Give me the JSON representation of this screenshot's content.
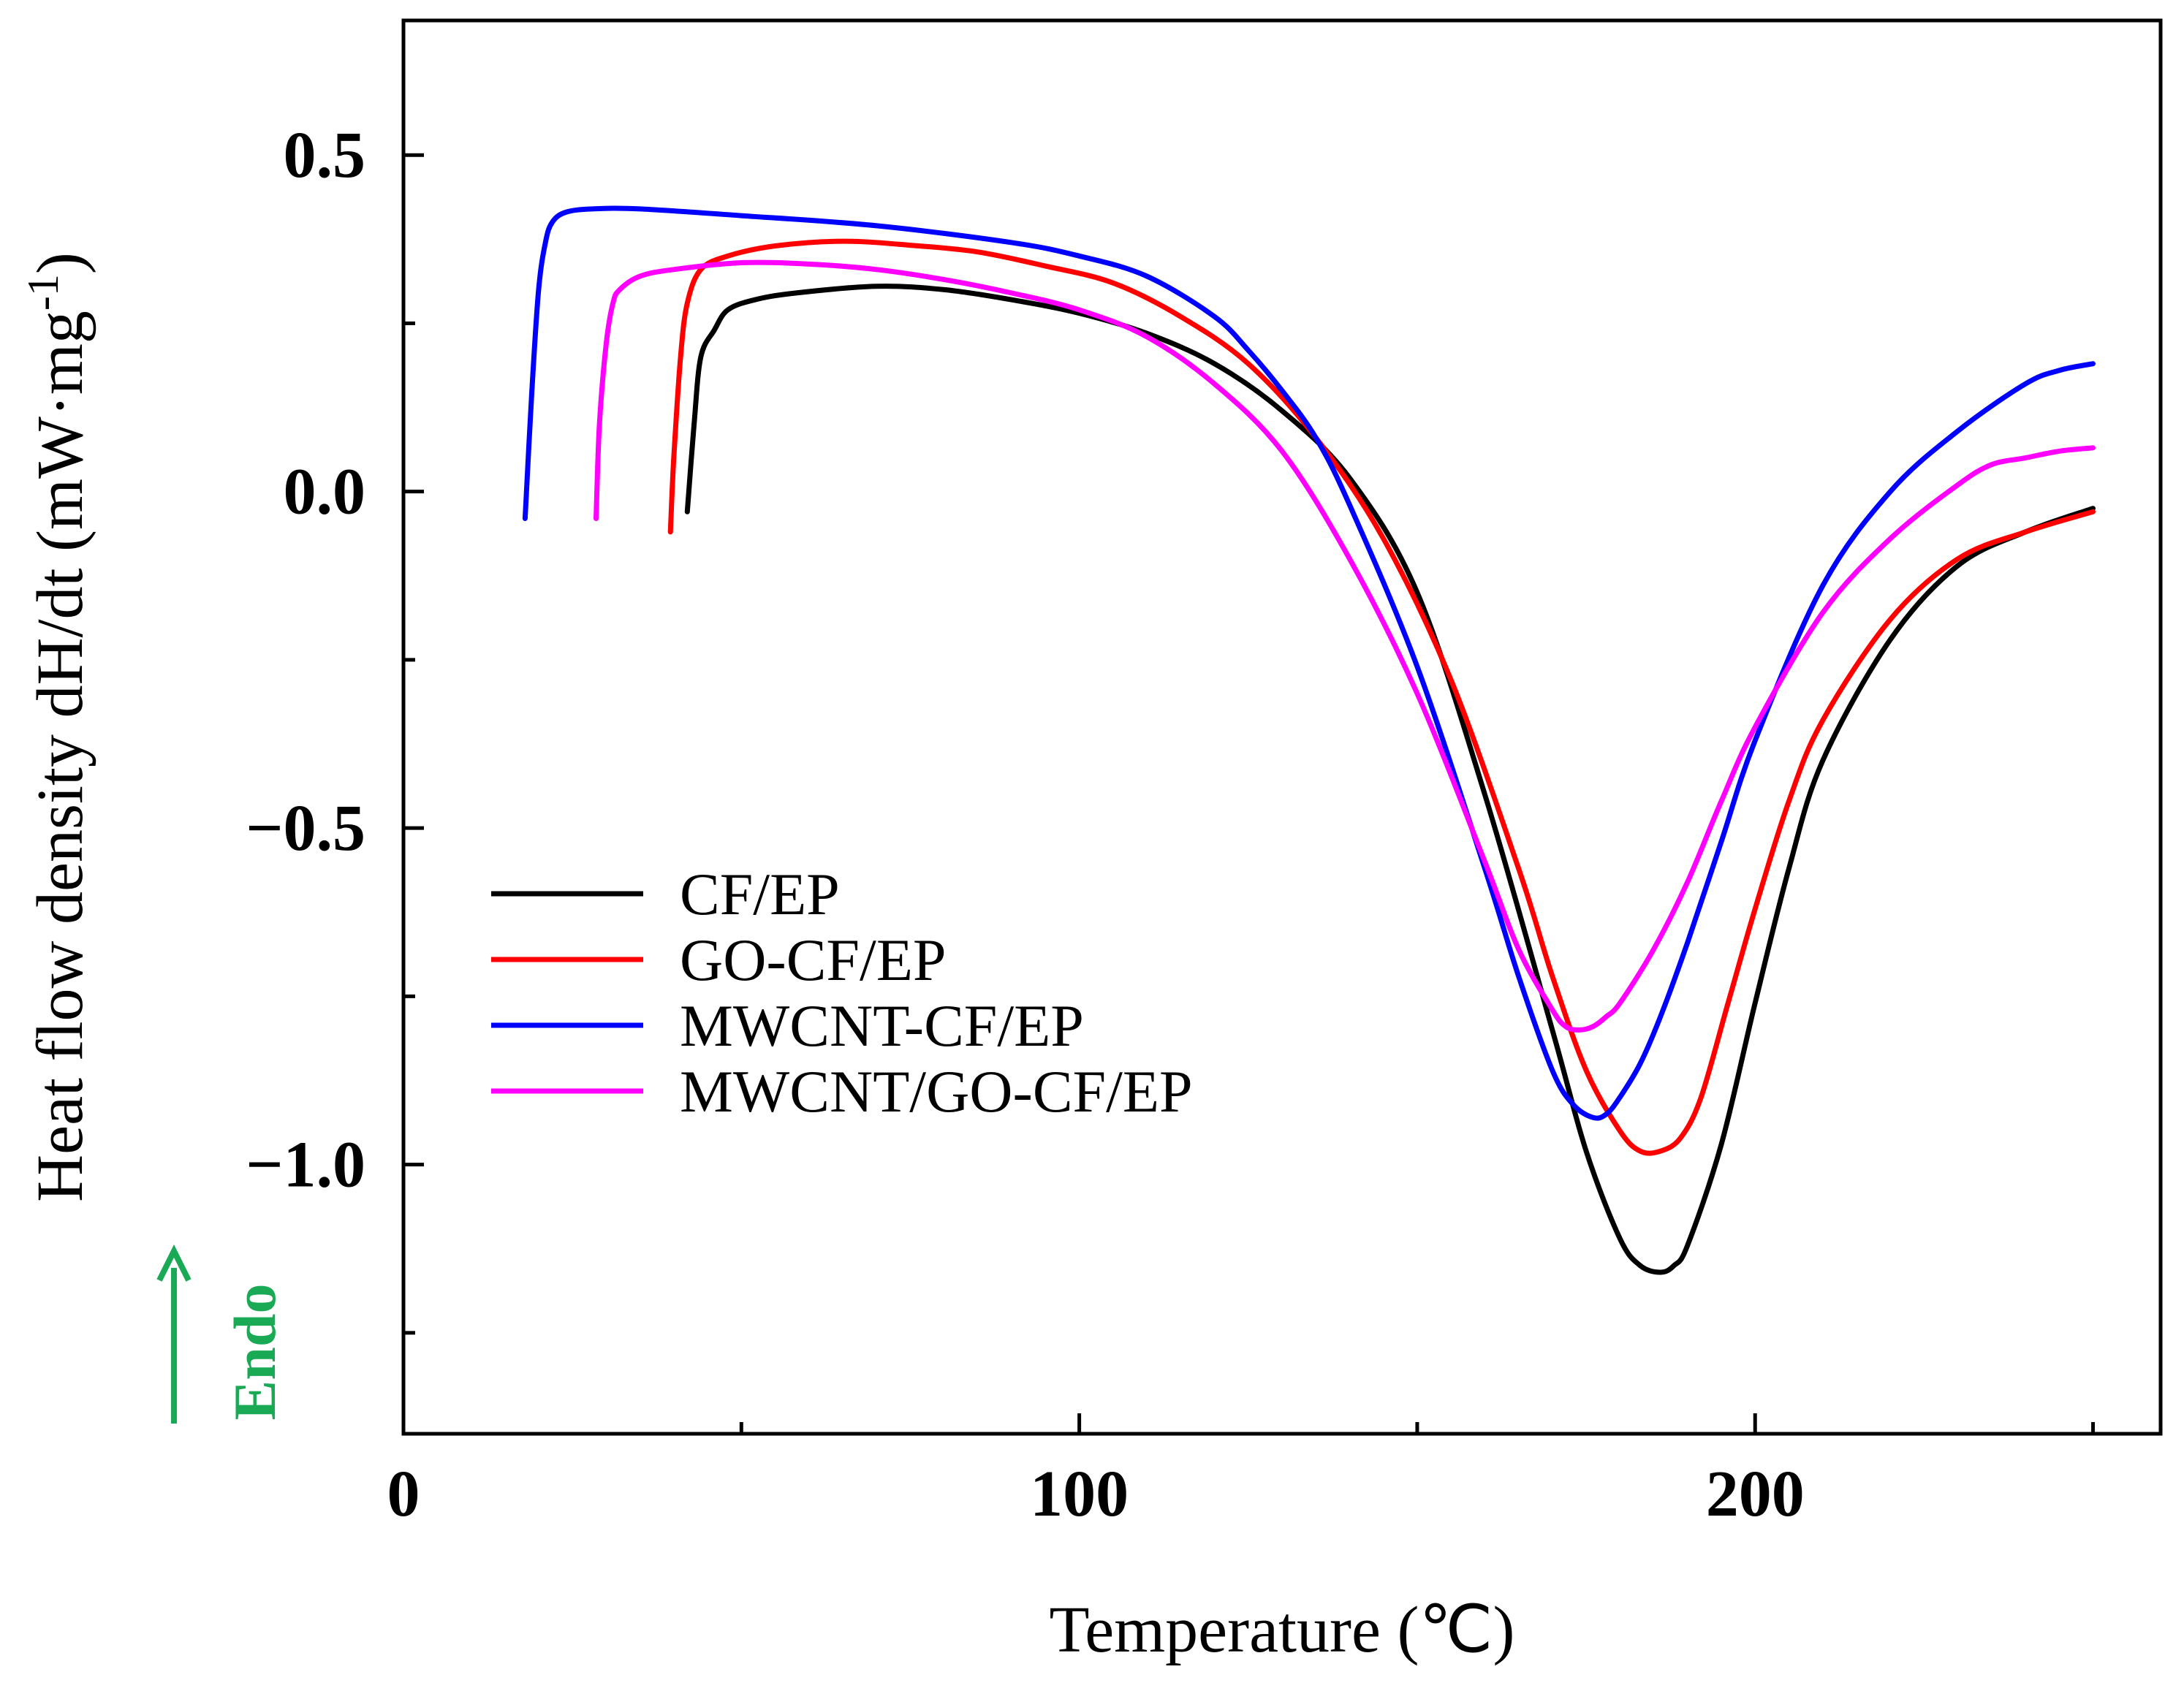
{
  "chart_data": {
    "type": "line",
    "title": "",
    "xlabel": "Temperature (℃)",
    "ylabel": {
      "main": "Heat flow density dH/dt (mW·mg",
      "sup": "-1",
      "close": ")"
    },
    "xlim": [
      0,
      260
    ],
    "ylim": [
      -1.4,
      0.7
    ],
    "x_major_ticks": [
      0,
      100,
      200
    ],
    "x_major_tick_labels": [
      "0",
      "100",
      "200"
    ],
    "x_minor_ticks": [
      50,
      150,
      250
    ],
    "y_major_ticks": [
      0.5,
      0.0,
      -0.5,
      -1.0
    ],
    "y_major_tick_labels": [
      "0.5",
      "0.0",
      "−0.5",
      "−1.0"
    ],
    "y_minor_ticks": [
      0.25,
      -0.25,
      -0.75,
      -1.25
    ],
    "grid": false,
    "legend_position": "lower-left",
    "annotation": {
      "text": "Endo",
      "arrow": "up",
      "color": "#1aaa55"
    },
    "series": [
      {
        "name": "CF/EP",
        "color": "#000000",
        "x": [
          42,
          43,
          44,
          46,
          48,
          52,
          58,
          70,
          80,
          90,
          100,
          110,
          120,
          130,
          140,
          150,
          160,
          170,
          175,
          180,
          183,
          186,
          188,
          190,
          195,
          200,
          205,
          210,
          220,
          230,
          240,
          250
        ],
        "y": [
          -0.03,
          0.1,
          0.2,
          0.24,
          0.27,
          0.285,
          0.295,
          0.305,
          0.3,
          0.285,
          0.265,
          0.235,
          0.19,
          0.12,
          0.02,
          -0.15,
          -0.45,
          -0.8,
          -0.98,
          -1.11,
          -1.15,
          -1.16,
          -1.15,
          -1.12,
          -0.97,
          -0.76,
          -0.56,
          -0.4,
          -0.22,
          -0.11,
          -0.06,
          -0.025
        ]
      },
      {
        "name": "GO-CF/EP",
        "color": "#ff0000",
        "x": [
          39.5,
          40,
          41,
          42,
          44,
          48,
          55,
          65,
          75,
          85,
          95,
          105,
          115,
          125,
          135,
          145,
          155,
          165,
          170,
          175,
          180,
          183,
          186,
          189,
          192,
          196,
          200,
          205,
          210,
          220,
          230,
          240,
          250
        ],
        "y": [
          -0.06,
          0.05,
          0.2,
          0.28,
          0.33,
          0.35,
          0.365,
          0.372,
          0.366,
          0.356,
          0.335,
          0.31,
          0.26,
          0.19,
          0.08,
          -0.07,
          -0.28,
          -0.56,
          -0.72,
          -0.86,
          -0.95,
          -0.98,
          -0.98,
          -0.96,
          -0.9,
          -0.76,
          -0.62,
          -0.46,
          -0.34,
          -0.19,
          -0.1,
          -0.06,
          -0.03
        ]
      },
      {
        "name": "MWCNT-CF/EP",
        "color": "#0000ff",
        "x": [
          18,
          19,
          20,
          21,
          22,
          24,
          28,
          35,
          50,
          70,
          90,
          100,
          110,
          120,
          125,
          130,
          135,
          140,
          150,
          160,
          165,
          170,
          173,
          176,
          178,
          180,
          183,
          186,
          190,
          195,
          200,
          210,
          220,
          230,
          240,
          245,
          250
        ],
        "y": [
          -0.04,
          0.15,
          0.3,
          0.37,
          0.4,
          0.415,
          0.42,
          0.42,
          0.41,
          0.395,
          0.37,
          0.35,
          0.32,
          0.26,
          0.21,
          0.15,
          0.08,
          -0.02,
          -0.26,
          -0.56,
          -0.72,
          -0.86,
          -0.91,
          -0.93,
          -0.925,
          -0.9,
          -0.85,
          -0.78,
          -0.67,
          -0.52,
          -0.37,
          -0.14,
          0.0,
          0.09,
          0.16,
          0.18,
          0.19
        ]
      },
      {
        "name": "MWCNT/GO-CF/EP",
        "color": "#ff00ff",
        "x": [
          28.5,
          29,
          30,
          31,
          32,
          35,
          40,
          50,
          60,
          70,
          80,
          90,
          100,
          110,
          120,
          130,
          140,
          150,
          160,
          165,
          170,
          172,
          174,
          176,
          178,
          180,
          185,
          190,
          195,
          200,
          210,
          220,
          230,
          235,
          240,
          245,
          250
        ],
        "y": [
          -0.04,
          0.1,
          0.22,
          0.28,
          0.3,
          0.32,
          0.33,
          0.34,
          0.338,
          0.33,
          0.315,
          0.295,
          0.27,
          0.23,
          0.16,
          0.06,
          -0.1,
          -0.3,
          -0.55,
          -0.68,
          -0.77,
          -0.795,
          -0.8,
          -0.795,
          -0.78,
          -0.76,
          -0.68,
          -0.58,
          -0.46,
          -0.35,
          -0.18,
          -0.07,
          0.01,
          0.04,
          0.05,
          0.06,
          0.065
        ]
      }
    ]
  }
}
